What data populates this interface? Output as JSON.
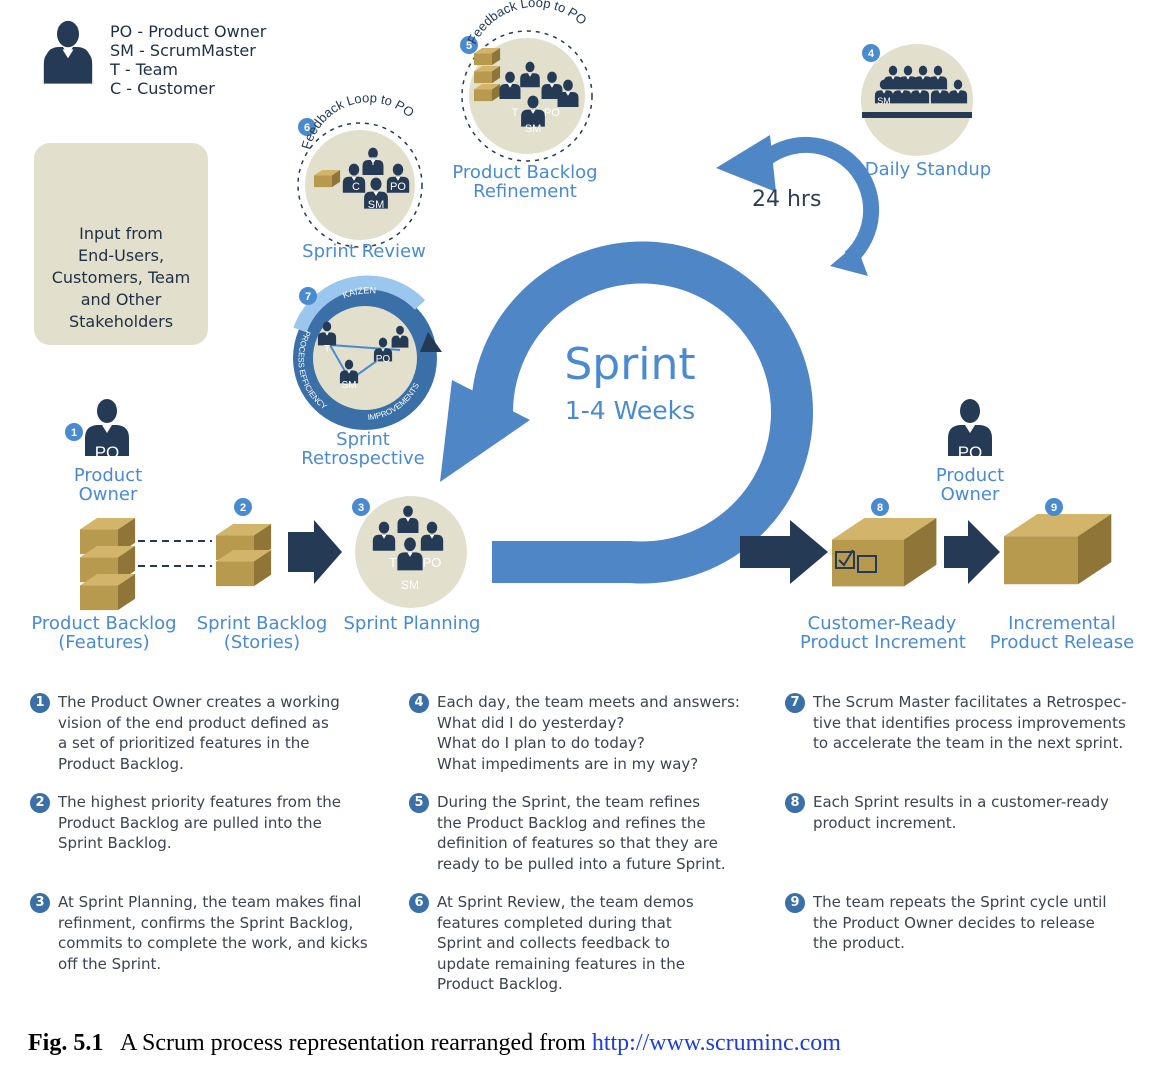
{
  "legend": {
    "lines": [
      "PO - Product Owner",
      "SM - ScrumMaster",
      "T - Team",
      "C - Customer"
    ]
  },
  "input_box": {
    "lines": [
      "Input from",
      "End-Users,",
      "Customers, Team",
      "and Other",
      "Stakeholders"
    ]
  },
  "steps": {
    "product_owner_left": [
      "Product",
      "Owner"
    ],
    "product_owner_right": [
      "Product",
      "Owner"
    ],
    "product_backlog": [
      "Product Backlog",
      "(Features)"
    ],
    "sprint_backlog": [
      "Sprint Backlog",
      "(Stories)"
    ],
    "sprint_planning": "Sprint Planning",
    "sprint_review": "Sprint Review",
    "sprint_retrospective": [
      "Sprint",
      "Retrospective"
    ],
    "backlog_refinement": [
      "Product Backlog",
      "Refinement"
    ],
    "daily_standup": "Daily Standup",
    "customer_ready": [
      "Customer-Ready",
      "Product Increment"
    ],
    "incremental_release": [
      "Incremental",
      "Product Release"
    ],
    "feedback_loop": "Feedback Loop to PO"
  },
  "cycle": {
    "title": "Sprint",
    "subtitle": "1-4 Weeks",
    "daily": "24 hrs"
  },
  "retro_ring": {
    "kaizen": "KAIZEN",
    "process": "PROCESS EFFICIENCY",
    "improvements": "IMPROVEMENTS"
  },
  "badges": {
    "po": "PO",
    "sm": "SM",
    "t": "T",
    "c": "C",
    "n1": "1",
    "n2": "2",
    "n3": "3",
    "n4": "4",
    "n5": "5",
    "n6": "6",
    "n7": "7",
    "n8": "8",
    "n9": "9"
  },
  "notes": [
    {
      "num": "1",
      "lines": [
        "The Product Owner creates a working",
        "vision of the end product defined as",
        "a set of prioritized features in the",
        "Product Backlog."
      ]
    },
    {
      "num": "2",
      "lines": [
        "The highest priority features from the",
        "Product Backlog are pulled into the",
        "Sprint Backlog."
      ]
    },
    {
      "num": "3",
      "lines": [
        "At Sprint Planning, the team makes final",
        "refinment, confirms the Sprint Backlog,",
        "commits to complete the work, and kicks",
        "off the Sprint."
      ]
    },
    {
      "num": "4",
      "lines": [
        "Each day, the team meets and answers:",
        "What did I do yesterday?",
        "What do I plan to do today?",
        "What impediments are in my way?"
      ]
    },
    {
      "num": "5",
      "lines": [
        "During the Sprint, the team refines",
        "the Product Backlog and refines the",
        "definition of features so that they are",
        "ready to be pulled into a future Sprint."
      ]
    },
    {
      "num": "6",
      "lines": [
        "At Sprint Review, the team demos",
        "features completed during that",
        "Sprint and collects feedback to",
        "update remaining features in the",
        "Product Backlog."
      ]
    },
    {
      "num": "7",
      "lines": [
        "The Scrum Master facilitates a Retrospec-",
        "tive that identifies process improvements",
        "to accelerate the team in the next sprint."
      ]
    },
    {
      "num": "8",
      "lines": [
        "Each Sprint results in a customer-ready",
        "product increment."
      ]
    },
    {
      "num": "9",
      "lines": [
        "The team repeats the Sprint cycle until",
        "the Product Owner decides to release",
        "the product."
      ]
    }
  ],
  "caption": {
    "fig": "Fig. 5.1",
    "text": "A Scrum process representation rearranged from",
    "link": "http://www.scruminc.com"
  },
  "colors": {
    "blue": "#4a8bd0",
    "navy": "#253a55",
    "beige": "#e2e0cc",
    "box": "#b89a4e"
  }
}
